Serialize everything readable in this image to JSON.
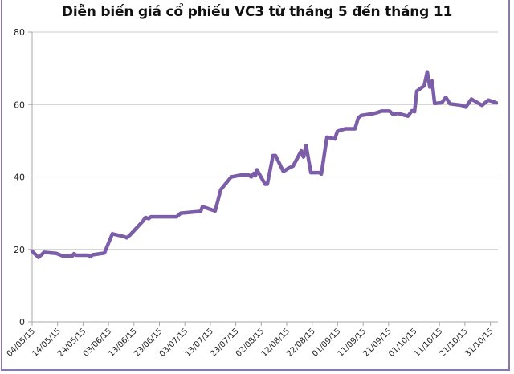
{
  "chart_data": {
    "type": "line",
    "title": "Diễn biến giá cổ phiếu VC3 từ tháng 5 đến tháng 11",
    "xlabel": "",
    "ylabel": "",
    "ylim": [
      0,
      80
    ],
    "yticks": [
      0,
      20,
      40,
      60,
      80
    ],
    "grid": "horizontal",
    "legend": "none",
    "line_color": "#7b5ea7",
    "x_tick_labels": [
      "04/05/15",
      "14/05/15",
      "24/05/15",
      "03/06/15",
      "13/06/15",
      "23/06/15",
      "03/07/15",
      "13/07/15",
      "23/07/15",
      "02/08/15",
      "12/08/15",
      "22/08/15",
      "01/09/15",
      "11/09/15",
      "21/09/15",
      "01/10/15",
      "11/10/15",
      "21/10/15",
      "31/10/15"
    ],
    "series": [
      {
        "name": "VC3",
        "points": [
          [
            0,
            19.5
          ],
          [
            2.5,
            17.8
          ],
          [
            4.7,
            19.2
          ],
          [
            9.5,
            18.9
          ],
          [
            12,
            18.2
          ],
          [
            15.8,
            18.2
          ],
          [
            16.4,
            18.8
          ],
          [
            17.3,
            18.4
          ],
          [
            22,
            18.4
          ],
          [
            23,
            18.0
          ],
          [
            23.7,
            18.5
          ],
          [
            28.4,
            19.0
          ],
          [
            31.5,
            24.3
          ],
          [
            36.3,
            23.5
          ],
          [
            37.2,
            23.2
          ],
          [
            38.5,
            24.0
          ],
          [
            43.5,
            27.8
          ],
          [
            44.5,
            28.8
          ],
          [
            45.7,
            28.5
          ],
          [
            46.7,
            29.0
          ],
          [
            52,
            29.0
          ],
          [
            56.8,
            29.0
          ],
          [
            58.4,
            30.0
          ],
          [
            63.1,
            30.3
          ],
          [
            66.2,
            30.5
          ],
          [
            66.9,
            31.8
          ],
          [
            71.9,
            30.6
          ],
          [
            74.1,
            36.5
          ],
          [
            78.2,
            40.0
          ],
          [
            82,
            40.5
          ],
          [
            85.2,
            40.5
          ],
          [
            86.1,
            40.0
          ],
          [
            87.1,
            41.0
          ],
          [
            87.7,
            40.3
          ],
          [
            88.3,
            42.0
          ],
          [
            91.5,
            38.0
          ],
          [
            92.4,
            38.0
          ],
          [
            94.6,
            45.9
          ],
          [
            95.6,
            45.9
          ],
          [
            98.7,
            41.5
          ],
          [
            100.9,
            42.5
          ],
          [
            102.5,
            43.0
          ],
          [
            105.7,
            47.2
          ],
          [
            106.6,
            45.5
          ],
          [
            107.6,
            48.7
          ],
          [
            109.5,
            41.2
          ],
          [
            113,
            41.2
          ],
          [
            113.6,
            40.8
          ],
          [
            114.5,
            45.0
          ],
          [
            115.8,
            51.0
          ],
          [
            118.9,
            50.5
          ],
          [
            119.9,
            52.6
          ],
          [
            123,
            53.3
          ],
          [
            126.8,
            53.3
          ],
          [
            128.1,
            56.3
          ],
          [
            129.3,
            57.0
          ],
          [
            134.1,
            57.5
          ],
          [
            135.6,
            57.8
          ],
          [
            137.2,
            58.2
          ],
          [
            140.4,
            58.2
          ],
          [
            141.9,
            57.2
          ],
          [
            143.5,
            57.6
          ],
          [
            147.6,
            56.8
          ],
          [
            149.2,
            58.3
          ],
          [
            150.2,
            58.0
          ],
          [
            151.1,
            63.7
          ],
          [
            154,
            65.2
          ],
          [
            155.2,
            69.0
          ],
          [
            156.2,
            64.8
          ],
          [
            157.1,
            66.5
          ],
          [
            158.1,
            60.3
          ],
          [
            160.9,
            60.5
          ],
          [
            162.5,
            62.0
          ],
          [
            164.1,
            60.2
          ],
          [
            168.8,
            59.8
          ],
          [
            170.3,
            59.3
          ],
          [
            172.6,
            61.5
          ],
          [
            176.7,
            59.8
          ],
          [
            179.2,
            61.2
          ],
          [
            182.3,
            60.5
          ]
        ]
      }
    ],
    "x_axis_note": "points are [days since 04/05/15, price]"
  }
}
